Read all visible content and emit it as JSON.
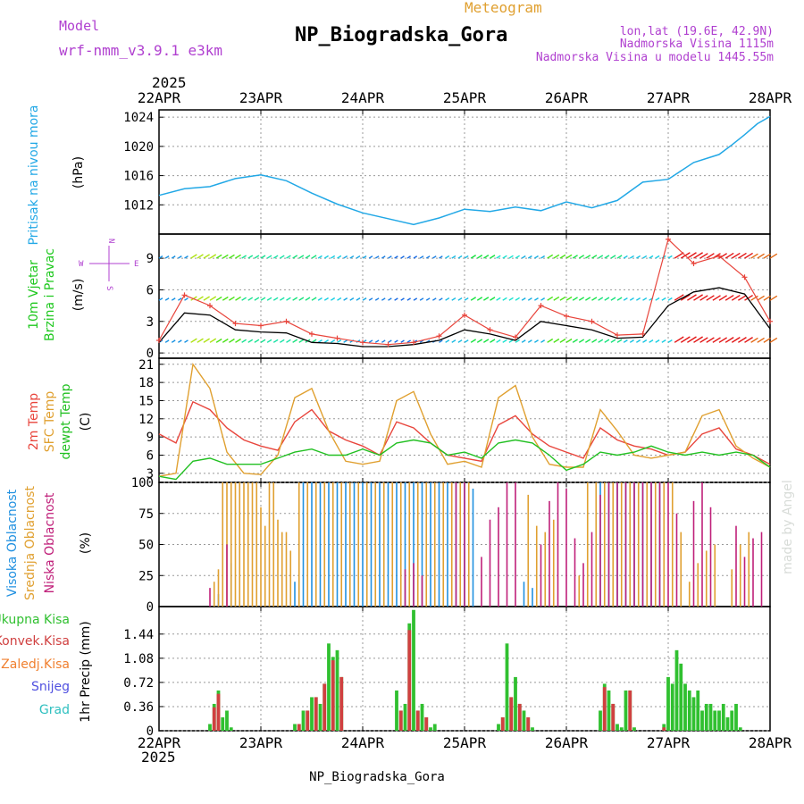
{
  "header": {
    "model_label": "Model",
    "model_value": "wrf-nmm_v3.9.1 e3km",
    "title": "NP_Biogradska_Gora",
    "subtitle": "Meteogram",
    "lonlat": "lon,lat (19.6E, 42.9N)",
    "elevation": "Nadmorska Visina 1115m",
    "model_elevation": "Nadmorska Visina u modelu 1445.55m",
    "year_top": "2025",
    "year_bottom": "2025",
    "footer": "NP_Biogradska_Gora",
    "credit": "made by Angel"
  },
  "colors": {
    "pressure": "#22a8e6",
    "wind_label": "#1fc81f",
    "wind_speed": "#e8453c",
    "wind_black": "#000000",
    "temp2m": "#e8453c",
    "sfc_temp": "#e0a030",
    "dewpt": "#22c022",
    "cloud_high": "#2090e0",
    "cloud_mid": "#e0a030",
    "cloud_low": "#c0207a",
    "precip_total": "#30c030",
    "precip_conv": "#d04040",
    "precip_frozen": "#f08030",
    "snow": "#5050e0",
    "hail": "#30c0c0",
    "purple": "#b040d0"
  },
  "chart_data": [
    {
      "type": "line",
      "panel": "pressure",
      "x_categories": [
        "22APR",
        "23APR",
        "24APR",
        "25APR",
        "26APR",
        "27APR",
        "28APR"
      ],
      "x_range_hours": [
        0,
        144
      ],
      "ylabel": "Pritisak na nivou mora",
      "unit": "(hPa)",
      "ylim": [
        1008,
        1025
      ],
      "yticks": [
        1012,
        1016,
        1020,
        1024
      ],
      "series": [
        {
          "name": "Pritisak na nivou mora",
          "x": [
            0,
            6,
            12,
            18,
            24,
            30,
            36,
            42,
            48,
            54,
            60,
            66,
            72,
            78,
            84,
            90,
            96,
            102,
            108,
            114,
            120,
            126,
            132,
            135,
            138,
            141,
            144
          ],
          "values": [
            1013.3,
            1014.2,
            1014.5,
            1015.6,
            1016.1,
            1015.3,
            1013.6,
            1012.1,
            1010.9,
            1010.1,
            1009.3,
            1010.2,
            1011.4,
            1011.1,
            1011.7,
            1011.2,
            1012.4,
            1011.6,
            1012.6,
            1015.1,
            1015.5,
            1017.8,
            1018.9,
            1020.2,
            1021.6,
            1023.1,
            1024.1
          ]
        }
      ]
    },
    {
      "type": "line",
      "panel": "wind",
      "ylabel": "10m Vjetar Brzina i Pravac",
      "unit": "(m/s)",
      "direction_legend": {
        "n": "N",
        "e": "E",
        "w": "W",
        "s": "S"
      },
      "ylim": [
        -0.5,
        11.3
      ],
      "yticks": [
        0,
        3,
        6,
        9
      ],
      "series": [
        {
          "name": "Brzina (udari)",
          "x": [
            0,
            6,
            12,
            18,
            24,
            30,
            36,
            42,
            48,
            54,
            60,
            66,
            72,
            78,
            84,
            90,
            96,
            102,
            108,
            114,
            120,
            126,
            132,
            138,
            144
          ],
          "values": [
            1.2,
            5.5,
            4.5,
            2.8,
            2.6,
            3.0,
            1.8,
            1.4,
            1.0,
            0.8,
            1.0,
            1.6,
            3.6,
            2.2,
            1.5,
            4.5,
            3.5,
            3.0,
            1.7,
            1.8,
            10.8,
            8.5,
            9.2,
            7.2,
            3.0
          ]
        },
        {
          "name": "Brzina",
          "x": [
            0,
            6,
            12,
            18,
            24,
            30,
            36,
            42,
            48,
            54,
            60,
            66,
            72,
            78,
            84,
            90,
            96,
            102,
            108,
            114,
            120,
            126,
            132,
            138,
            144
          ],
          "values": [
            1.0,
            3.8,
            3.6,
            2.2,
            2.0,
            1.9,
            1.0,
            0.9,
            0.6,
            0.6,
            0.8,
            1.2,
            2.2,
            1.8,
            1.2,
            3.0,
            2.6,
            2.2,
            1.4,
            1.5,
            4.5,
            5.8,
            6.2,
            5.6,
            2.3
          ]
        }
      ],
      "barb_bands_ms": [
        1,
        5,
        9
      ]
    },
    {
      "type": "line",
      "panel": "temperature",
      "ylabel": [
        "2m Temp",
        "SFC Temp",
        "dewpt Temp"
      ],
      "unit": "(C)",
      "ylim": [
        1.5,
        22
      ],
      "yticks": [
        3,
        6,
        9,
        12,
        15,
        18,
        21
      ],
      "series": [
        {
          "name": "2m Temp",
          "x": [
            0,
            4,
            8,
            12,
            16,
            20,
            24,
            28,
            32,
            36,
            40,
            44,
            48,
            52,
            56,
            60,
            64,
            68,
            72,
            76,
            80,
            84,
            88,
            92,
            96,
            100,
            104,
            108,
            112,
            116,
            120,
            124,
            128,
            132,
            136,
            140,
            144
          ],
          "values": [
            9.5,
            8.0,
            14.8,
            13.5,
            10.5,
            8.5,
            7.5,
            6.8,
            11.5,
            13.5,
            10.0,
            8.5,
            7.5,
            6.0,
            11.5,
            10.5,
            8.0,
            6.0,
            5.5,
            5.0,
            11.0,
            12.5,
            9.5,
            7.5,
            6.5,
            5.5,
            10.5,
            8.5,
            7.5,
            7.0,
            6.0,
            6.5,
            9.5,
            10.5,
            7.0,
            6.0,
            4.5
          ]
        },
        {
          "name": "SFC Temp",
          "x": [
            0,
            4,
            8,
            12,
            16,
            20,
            24,
            28,
            32,
            36,
            40,
            44,
            48,
            52,
            56,
            60,
            64,
            68,
            72,
            76,
            80,
            84,
            88,
            92,
            96,
            100,
            104,
            108,
            112,
            116,
            120,
            124,
            128,
            132,
            136,
            140,
            144
          ],
          "values": [
            2.5,
            3.0,
            21.0,
            17.0,
            6.5,
            3.0,
            2.8,
            6.0,
            15.5,
            17.0,
            10.0,
            5.0,
            4.5,
            5.0,
            15.0,
            16.5,
            9.5,
            4.5,
            5.0,
            4.0,
            15.5,
            17.5,
            9.0,
            4.5,
            4.0,
            4.0,
            13.5,
            10.0,
            6.0,
            5.5,
            6.0,
            6.5,
            12.5,
            13.5,
            7.5,
            5.5,
            4.0
          ]
        },
        {
          "name": "dewpt Temp",
          "x": [
            0,
            4,
            8,
            12,
            16,
            20,
            24,
            28,
            32,
            36,
            40,
            44,
            48,
            52,
            56,
            60,
            64,
            68,
            72,
            76,
            80,
            84,
            88,
            92,
            96,
            100,
            104,
            108,
            112,
            116,
            120,
            124,
            128,
            132,
            136,
            140,
            144
          ],
          "values": [
            2.5,
            2.0,
            5.0,
            5.5,
            4.5,
            4.5,
            4.5,
            5.5,
            6.5,
            7.0,
            6.0,
            6.0,
            7.0,
            6.0,
            8.0,
            8.5,
            8.0,
            6.0,
            6.5,
            5.5,
            8.0,
            8.5,
            8.0,
            6.0,
            3.5,
            4.5,
            6.5,
            6.0,
            6.5,
            7.5,
            6.5,
            6.0,
            6.5,
            6.0,
            6.5,
            6.0,
            4.0
          ]
        }
      ]
    },
    {
      "type": "bar",
      "panel": "cloud",
      "ylabel": [
        "Visoka Oblacnost",
        "Srednja Oblacnost",
        "Niska Oblacnost"
      ],
      "unit": "(%)",
      "ylim": [
        0,
        100
      ],
      "yticks": [
        0,
        25,
        50,
        75,
        100
      ],
      "series": [
        {
          "name": "Visoka Oblacnost",
          "x": [
            14,
            17,
            32,
            34,
            36,
            38,
            40,
            42,
            44,
            46,
            48,
            50,
            52,
            54,
            56,
            58,
            60,
            62,
            64,
            66,
            68,
            70,
            72,
            74,
            86,
            88,
            104,
            106,
            108,
            110,
            112,
            114,
            116,
            118
          ],
          "values": [
            10,
            35,
            20,
            100,
            100,
            100,
            100,
            100,
            100,
            100,
            100,
            100,
            100,
            100,
            100,
            100,
            100,
            100,
            100,
            100,
            100,
            100,
            100,
            95,
            20,
            15,
            100,
            100,
            100,
            100,
            100,
            100,
            100,
            100
          ]
        },
        {
          "name": "Srednja Oblacnost",
          "x": [
            13,
            14,
            15,
            16,
            17,
            18,
            19,
            20,
            21,
            22,
            23,
            24,
            25,
            26,
            27,
            28,
            29,
            30,
            31,
            33,
            35,
            37,
            39,
            41,
            43,
            45,
            47,
            49,
            51,
            53,
            55,
            57,
            59,
            61,
            63,
            65,
            67,
            69,
            71,
            73,
            87,
            89,
            91,
            93,
            99,
            101,
            103,
            105,
            107,
            109,
            111,
            113,
            115,
            117,
            119,
            121,
            123,
            125,
            127,
            129,
            131,
            135,
            137,
            139
          ],
          "values": [
            20,
            30,
            100,
            100,
            100,
            100,
            100,
            100,
            100,
            100,
            100,
            80,
            65,
            100,
            100,
            70,
            60,
            60,
            45,
            100,
            100,
            100,
            100,
            100,
            100,
            100,
            100,
            100,
            100,
            100,
            100,
            100,
            100,
            100,
            100,
            100,
            100,
            100,
            100,
            100,
            90,
            65,
            60,
            70,
            25,
            100,
            100,
            100,
            100,
            100,
            100,
            100,
            100,
            100,
            100,
            100,
            60,
            20,
            35,
            45,
            50,
            30,
            50,
            60
          ]
        },
        {
          "name": "Niska Oblacnost",
          "x": [
            12,
            16,
            58,
            60,
            62,
            70,
            72,
            76,
            78,
            80,
            82,
            84,
            90,
            92,
            94,
            96,
            98,
            100,
            102,
            104,
            106,
            108,
            110,
            112,
            114,
            116,
            118,
            120,
            122,
            126,
            128,
            130,
            136,
            138,
            140,
            142
          ],
          "values": [
            15,
            50,
            30,
            35,
            25,
            100,
            100,
            40,
            70,
            80,
            100,
            100,
            50,
            85,
            100,
            95,
            55,
            35,
            60,
            90,
            100,
            100,
            100,
            100,
            100,
            100,
            100,
            100,
            75,
            85,
            100,
            80,
            65,
            40,
            55,
            60
          ]
        }
      ]
    },
    {
      "type": "bar",
      "panel": "precip",
      "ylabel": "1hr Precip (mm)",
      "legend": [
        "Ukupna Kisa",
        "Konvek.Kisa",
        "Zaledj.Kisa",
        "Snijeg",
        "Grad"
      ],
      "ylim": [
        0,
        1.85
      ],
      "yticks": [
        0,
        0.36,
        0.72,
        1.08,
        1.44
      ],
      "series": [
        {
          "name": "Ukupna Kisa",
          "x": [
            12,
            13,
            14,
            15,
            16,
            17,
            32,
            33,
            34,
            35,
            36,
            37,
            38,
            39,
            40,
            41,
            42,
            43,
            56,
            57,
            58,
            59,
            60,
            61,
            62,
            63,
            64,
            65,
            80,
            81,
            82,
            83,
            84,
            85,
            86,
            87,
            88,
            104,
            105,
            106,
            107,
            108,
            109,
            110,
            111,
            112,
            119,
            120,
            121,
            122,
            123,
            124,
            125,
            126,
            127,
            128,
            129,
            130,
            131,
            132,
            133,
            134,
            135,
            136,
            137
          ],
          "values": [
            0.1,
            0.4,
            0.6,
            0.2,
            0.3,
            0.05,
            0.1,
            0.1,
            0.3,
            0.3,
            0.5,
            0.5,
            0.4,
            0.7,
            1.3,
            1.1,
            1.2,
            0.8,
            0.6,
            0.3,
            0.4,
            1.6,
            1.8,
            0.3,
            0.4,
            0.2,
            0.05,
            0.1,
            0.1,
            0.2,
            1.3,
            0.5,
            0.8,
            0.4,
            0.3,
            0.2,
            0.05,
            0.3,
            0.7,
            0.6,
            0.4,
            0.1,
            0.05,
            0.6,
            0.6,
            0.05,
            0.1,
            0.8,
            0.7,
            1.2,
            1.0,
            0.7,
            0.6,
            0.5,
            0.6,
            0.3,
            0.4,
            0.4,
            0.3,
            0.3,
            0.4,
            0.2,
            0.3,
            0.4,
            0.05
          ]
        },
        {
          "name": "Konvek.Kisa",
          "x": [
            13,
            14,
            33,
            35,
            37,
            39,
            41,
            43,
            57,
            59,
            61,
            63,
            81,
            83,
            85,
            87,
            105,
            107,
            111,
            119
          ],
          "values": [
            0.35,
            0.55,
            0.1,
            0.3,
            0.5,
            0.7,
            1.05,
            0.8,
            0.3,
            1.5,
            0.3,
            0.2,
            0.2,
            0.5,
            0.4,
            0.2,
            0.65,
            0.4,
            0.6,
            0.05
          ]
        },
        {
          "name": "Snijeg",
          "x": [],
          "values": []
        },
        {
          "name": "Grad",
          "x": [],
          "values": []
        }
      ]
    }
  ]
}
